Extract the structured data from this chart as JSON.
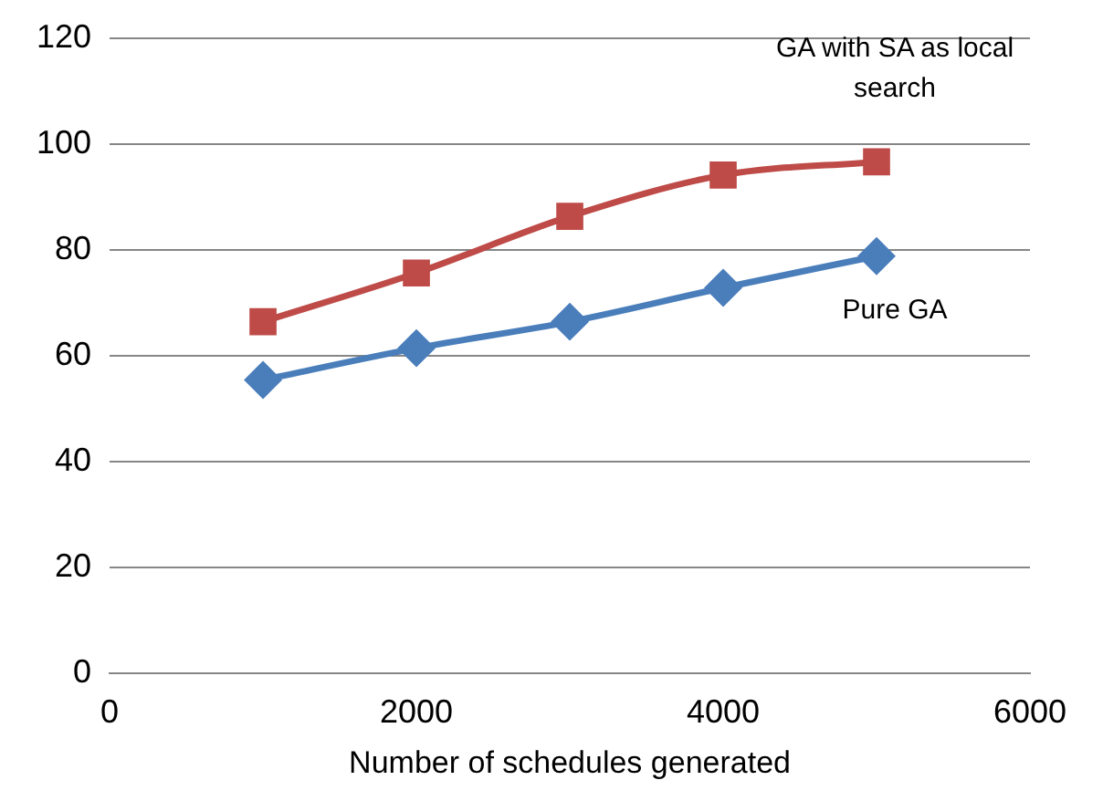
{
  "chart_data": {
    "type": "line",
    "xlabel": "Number of schedules generated",
    "x": [
      1000,
      2000,
      3000,
      4000,
      5000
    ],
    "xlim": [
      0,
      6000
    ],
    "xticks": [
      0,
      2000,
      4000,
      6000
    ],
    "ylim": [
      0,
      120
    ],
    "yticks": [
      0,
      20,
      40,
      60,
      80,
      100,
      120
    ],
    "grid": "y",
    "legend": false,
    "series": [
      {
        "name": "Pure GA",
        "color": "#4a7ebb",
        "marker": "diamond",
        "values": [
          55.4,
          61.4,
          66.4,
          72.8,
          78.8
        ]
      },
      {
        "name": "GA with SA as local search",
        "color": "#be4b48",
        "marker": "square",
        "values": [
          66.4,
          75.6,
          86.3,
          94.1,
          96.6
        ]
      }
    ]
  }
}
